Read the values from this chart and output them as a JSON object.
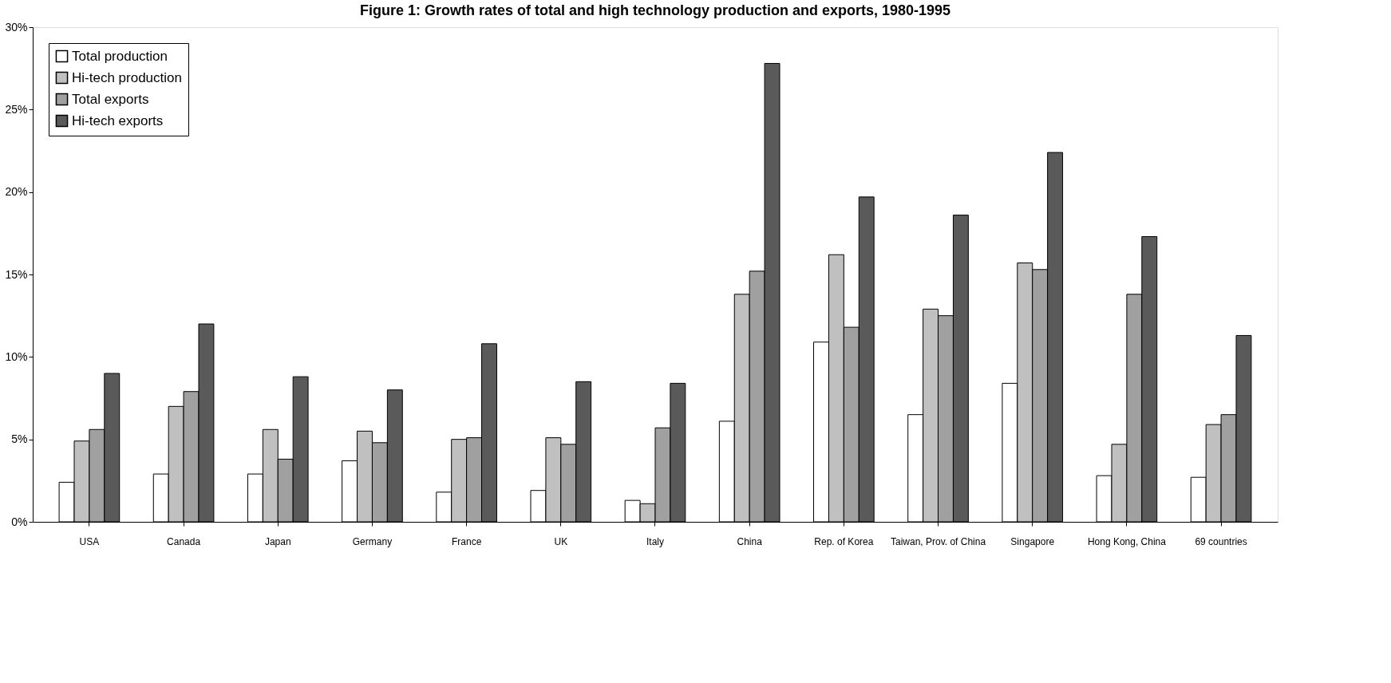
{
  "chart_data": {
    "type": "bar",
    "title": "Figure 1: Growth rates of total and high technology production and exports, 1980-1995",
    "categories": [
      "USA",
      "Canada",
      "Japan",
      "Germany",
      "France",
      "UK",
      "Italy",
      "China",
      "Rep. of Korea",
      "Taiwan, Prov. of China",
      "Singapore",
      "Hong Kong, China",
      "69 countries"
    ],
    "series": [
      {
        "name": "Total production",
        "color": "#ffffff",
        "values": [
          2.4,
          2.9,
          2.9,
          3.7,
          1.8,
          1.9,
          1.3,
          6.1,
          10.9,
          6.5,
          8.4,
          2.8,
          2.7
        ]
      },
      {
        "name": "Hi-tech production",
        "color": "#c0c0c0",
        "values": [
          4.9,
          7.0,
          5.6,
          5.5,
          5.0,
          5.1,
          1.1,
          13.8,
          16.2,
          12.9,
          15.7,
          4.7,
          5.9
        ]
      },
      {
        "name": "Total exports",
        "color": "#a0a0a0",
        "values": [
          5.6,
          7.9,
          3.8,
          4.8,
          5.1,
          4.7,
          5.7,
          15.2,
          11.8,
          12.5,
          15.3,
          13.8,
          6.5
        ]
      },
      {
        "name": "Hi-tech exports",
        "color": "#5a5a5a",
        "values": [
          9.0,
          12.0,
          8.8,
          8.0,
          10.8,
          8.5,
          8.4,
          27.8,
          19.7,
          18.6,
          22.4,
          17.3,
          11.3
        ]
      }
    ],
    "ylim": [
      0,
      30
    ],
    "yticks": [
      {
        "value": 0,
        "label": "0%"
      },
      {
        "value": 5,
        "label": "5%"
      },
      {
        "value": 10,
        "label": "10%"
      },
      {
        "value": 15,
        "label": "15%"
      },
      {
        "value": 20,
        "label": "20%"
      },
      {
        "value": 25,
        "label": "25%"
      },
      {
        "value": 30,
        "label": "30%"
      }
    ],
    "grid": false,
    "legend": "top left"
  }
}
